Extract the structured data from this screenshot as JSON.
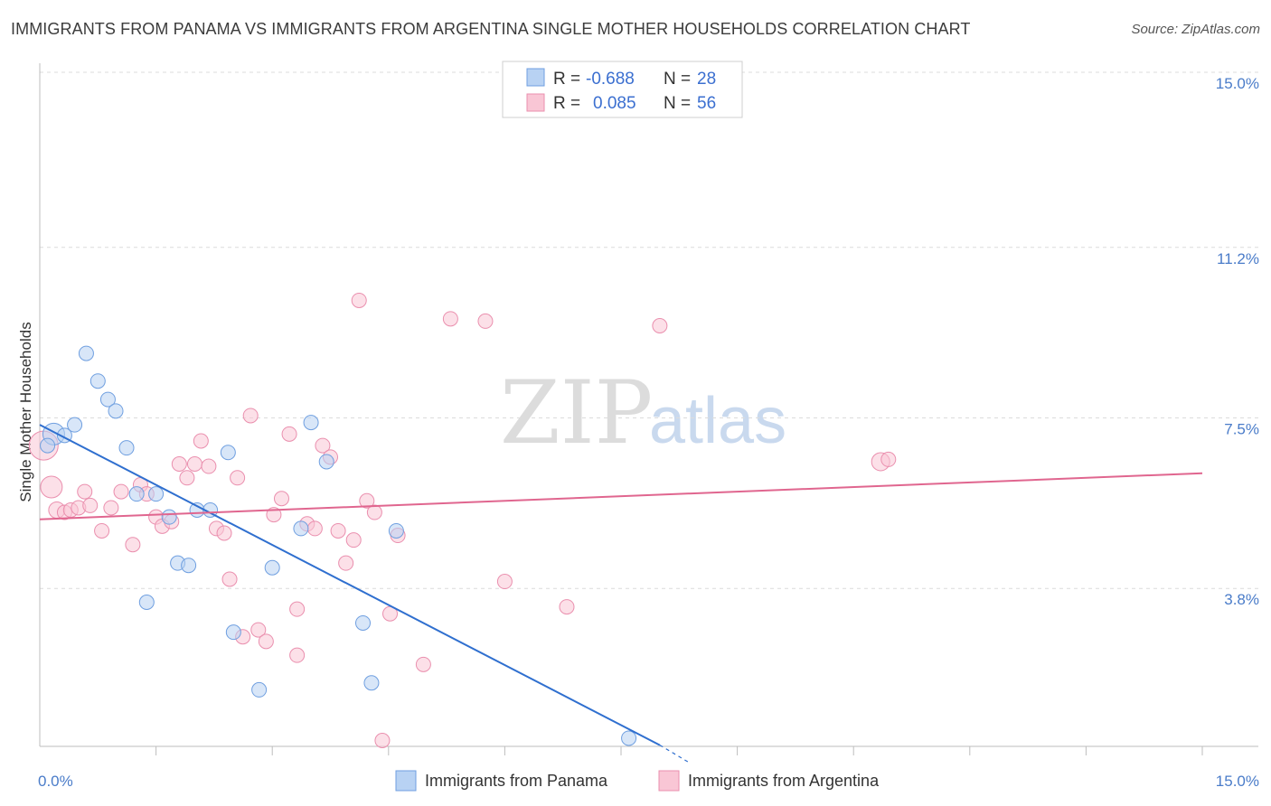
{
  "title": "IMMIGRANTS FROM PANAMA VS IMMIGRANTS FROM ARGENTINA SINGLE MOTHER HOUSEHOLDS CORRELATION CHART",
  "source": "Source: ZipAtlas.com",
  "watermark": {
    "zip": "ZIP",
    "atlas": "atlas"
  },
  "colors": {
    "panama_fill": "#b8d2f3",
    "panama_stroke": "#6f9fe0",
    "panama_line": "#2f6fcf",
    "argentina_fill": "#f9c6d5",
    "argentina_stroke": "#ea8fae",
    "argentina_line": "#e0668f",
    "grid": "#dcdcdc",
    "axis_tick_label": "#4a7cc9"
  },
  "legend": {
    "rows": [
      {
        "r_label": "R =",
        "r_value": "-0.688",
        "n_label": "N =",
        "n_value": "28"
      },
      {
        "r_label": "R =",
        "r_value": "0.085",
        "n_label": "N =",
        "n_value": "56"
      }
    ]
  },
  "chart_data": {
    "type": "scatter",
    "title": "IMMIGRANTS FROM PANAMA VS IMMIGRANTS FROM ARGENTINA SINGLE MOTHER HOUSEHOLDS CORRELATION CHART",
    "xlabel": "",
    "ylabel": "Single Mother Households",
    "xlim": [
      0,
      15
    ],
    "ylim": [
      0,
      15
    ],
    "x_tick_labels": [
      "0.0%",
      "15.0%"
    ],
    "y_ticks": [
      {
        "value": 3.8,
        "label": "3.8%"
      },
      {
        "value": 7.5,
        "label": "7.5%"
      },
      {
        "value": 11.2,
        "label": "11.2%"
      },
      {
        "value": 15.0,
        "label": "15.0%"
      }
    ],
    "series": [
      {
        "name": "Immigrants from Panama",
        "r": -0.688,
        "n": 28,
        "trend": {
          "x0": 0.0,
          "y0": 7.35,
          "x1": 8.0,
          "y1": 0.4,
          "dash_x1": 8.4,
          "dash_y1": 0.0
        },
        "points": [
          [
            0.18,
            7.15,
            12
          ],
          [
            0.32,
            7.12,
            8
          ],
          [
            0.45,
            7.35,
            8
          ],
          [
            0.6,
            8.9,
            8
          ],
          [
            0.75,
            8.3,
            8
          ],
          [
            0.88,
            7.9,
            8
          ],
          [
            0.98,
            7.65,
            8
          ],
          [
            1.12,
            6.85,
            8
          ],
          [
            1.25,
            5.85,
            8
          ],
          [
            1.5,
            5.85,
            8
          ],
          [
            1.67,
            5.35,
            8
          ],
          [
            1.78,
            4.35,
            8
          ],
          [
            1.92,
            4.3,
            8
          ],
          [
            2.03,
            5.5,
            8
          ],
          [
            2.2,
            5.5,
            8
          ],
          [
            2.43,
            6.75,
            8
          ],
          [
            2.5,
            2.85,
            8
          ],
          [
            2.83,
            1.6,
            8
          ],
          [
            3.0,
            4.25,
            8
          ],
          [
            3.37,
            5.1,
            8
          ],
          [
            3.5,
            7.4,
            8
          ],
          [
            3.7,
            6.55,
            8
          ],
          [
            4.17,
            3.05,
            8
          ],
          [
            4.28,
            1.75,
            8
          ],
          [
            4.6,
            5.05,
            8
          ],
          [
            7.6,
            0.55,
            8
          ],
          [
            1.38,
            3.5,
            8
          ],
          [
            0.1,
            6.9,
            8
          ]
        ]
      },
      {
        "name": "Immigrants from Argentina",
        "r": 0.085,
        "n": 56,
        "trend": {
          "x0": 0.0,
          "y0": 5.3,
          "x1": 15.0,
          "y1": 6.3
        },
        "points": [
          [
            0.05,
            6.9,
            16
          ],
          [
            0.15,
            6.0,
            12
          ],
          [
            0.22,
            5.5,
            9
          ],
          [
            0.32,
            5.45,
            8
          ],
          [
            0.4,
            5.5,
            8
          ],
          [
            0.5,
            5.55,
            8
          ],
          [
            0.58,
            5.9,
            8
          ],
          [
            0.65,
            5.6,
            8
          ],
          [
            0.8,
            5.05,
            8
          ],
          [
            0.92,
            5.55,
            8
          ],
          [
            1.05,
            5.9,
            8
          ],
          [
            1.2,
            4.75,
            8
          ],
          [
            1.3,
            6.05,
            8
          ],
          [
            1.38,
            5.85,
            8
          ],
          [
            1.5,
            5.35,
            8
          ],
          [
            1.58,
            5.15,
            8
          ],
          [
            1.7,
            5.25,
            8
          ],
          [
            1.8,
            6.5,
            8
          ],
          [
            1.9,
            6.2,
            8
          ],
          [
            2.0,
            6.5,
            8
          ],
          [
            2.08,
            7.0,
            8
          ],
          [
            2.18,
            6.45,
            8
          ],
          [
            2.28,
            5.1,
            8
          ],
          [
            2.38,
            5.0,
            8
          ],
          [
            2.45,
            4.0,
            8
          ],
          [
            2.55,
            6.2,
            8
          ],
          [
            2.62,
            2.75,
            8
          ],
          [
            2.72,
            7.55,
            8
          ],
          [
            2.82,
            2.9,
            8
          ],
          [
            2.92,
            2.65,
            8
          ],
          [
            3.02,
            5.4,
            8
          ],
          [
            3.12,
            5.75,
            8
          ],
          [
            3.22,
            7.15,
            8
          ],
          [
            3.32,
            3.35,
            8
          ],
          [
            3.32,
            2.35,
            8
          ],
          [
            3.45,
            5.2,
            8
          ],
          [
            3.55,
            5.1,
            8
          ],
          [
            3.65,
            6.9,
            8
          ],
          [
            3.75,
            6.65,
            8
          ],
          [
            3.85,
            5.05,
            8
          ],
          [
            3.95,
            4.35,
            8
          ],
          [
            4.05,
            4.85,
            8
          ],
          [
            4.12,
            10.05,
            8
          ],
          [
            4.22,
            5.7,
            8
          ],
          [
            4.32,
            5.45,
            8
          ],
          [
            4.42,
            0.5,
            8
          ],
          [
            4.52,
            3.25,
            8
          ],
          [
            4.62,
            4.95,
            8
          ],
          [
            4.95,
            2.15,
            8
          ],
          [
            5.3,
            9.65,
            8
          ],
          [
            5.75,
            9.6,
            8
          ],
          [
            6.0,
            3.95,
            8
          ],
          [
            6.8,
            3.4,
            8
          ],
          [
            8.0,
            9.5,
            8
          ],
          [
            10.85,
            6.55,
            10
          ],
          [
            10.95,
            6.6,
            8
          ]
        ]
      }
    ],
    "legend_position": "top-center"
  }
}
